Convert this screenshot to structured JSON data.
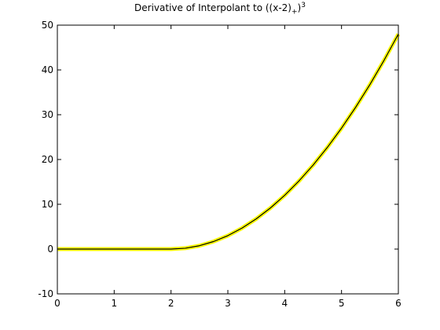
{
  "chart_data": {
    "type": "line",
    "title_main": "Derivative of Interpolant to ((x-2)",
    "title_sub": "+",
    "title_close": ")",
    "title_sup": "3",
    "xlabel": "",
    "ylabel": "",
    "xlim": [
      0,
      6
    ],
    "ylim": [
      -10,
      50
    ],
    "xticks": [
      0,
      1,
      2,
      3,
      4,
      5,
      6
    ],
    "yticks": [
      -10,
      0,
      10,
      20,
      30,
      40,
      50
    ],
    "grid": false,
    "series": [
      {
        "color_outer": "#ffff00",
        "color_inner": "#000000",
        "x": [
          0,
          0.5,
          1,
          1.5,
          2,
          2.25,
          2.5,
          2.75,
          3,
          3.25,
          3.5,
          3.75,
          4,
          4.25,
          4.5,
          4.75,
          5,
          5.25,
          5.5,
          5.75,
          6
        ],
        "y": [
          0,
          0,
          0,
          0,
          0,
          0.19,
          0.75,
          1.69,
          3,
          4.69,
          6.75,
          9.19,
          12,
          15.19,
          18.75,
          22.69,
          27,
          31.69,
          36.75,
          42.19,
          48
        ]
      }
    ]
  }
}
